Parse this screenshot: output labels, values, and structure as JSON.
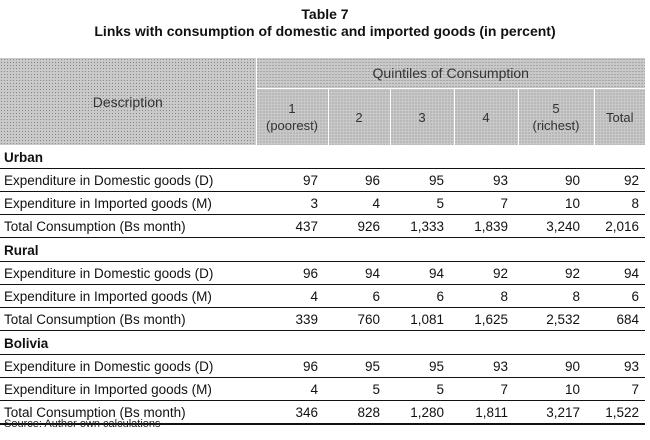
{
  "title": "Table 7",
  "subtitle": "Links with consumption of domestic and imported goods (in percent)",
  "header": {
    "description": "Description",
    "group": "Quintiles of Consumption",
    "columns": [
      {
        "line1": "1",
        "line2": "(poorest)"
      },
      {
        "line1": "2",
        "line2": ""
      },
      {
        "line1": "3",
        "line2": ""
      },
      {
        "line1": "4",
        "line2": ""
      },
      {
        "line1": "5",
        "line2": "(richest)"
      },
      {
        "line1": "Total",
        "line2": ""
      }
    ]
  },
  "sections": [
    {
      "name": "Urban",
      "rows": [
        {
          "label": "Expenditure in Domestic goods (D)",
          "values": [
            "97",
            "96",
            "95",
            "93",
            "90",
            "92"
          ]
        },
        {
          "label": "Expenditure in Imported goods (M)",
          "values": [
            "3",
            "4",
            "5",
            "7",
            "10",
            "8"
          ]
        },
        {
          "label": "Total Consumption (Bs month)",
          "values": [
            "437",
            "926",
            "1,333",
            "1,839",
            "3,240",
            "2,016"
          ]
        }
      ]
    },
    {
      "name": "Rural",
      "rows": [
        {
          "label": "Expenditure in Domestic goods (D)",
          "values": [
            "96",
            "94",
            "94",
            "92",
            "92",
            "94"
          ]
        },
        {
          "label": "Expenditure in Imported goods (M)",
          "values": [
            "4",
            "6",
            "6",
            "8",
            "8",
            "6"
          ]
        },
        {
          "label": "Total Consumption (Bs month)",
          "values": [
            "339",
            "760",
            "1,081",
            "1,625",
            "2,532",
            "684"
          ]
        }
      ]
    },
    {
      "name": "Bolivia",
      "rows": [
        {
          "label": "Expenditure in Domestic goods (D)",
          "values": [
            "96",
            "95",
            "95",
            "93",
            "90",
            "93"
          ]
        },
        {
          "label": "Expenditure in Imported goods (M)",
          "values": [
            "4",
            "5",
            "5",
            "7",
            "10",
            "7"
          ]
        },
        {
          "label": "Total Consumption (Bs month)",
          "values": [
            "346",
            "828",
            "1,280",
            "1,811",
            "3,217",
            "1,522"
          ]
        }
      ]
    }
  ],
  "source": "Source: Author own calculations"
}
